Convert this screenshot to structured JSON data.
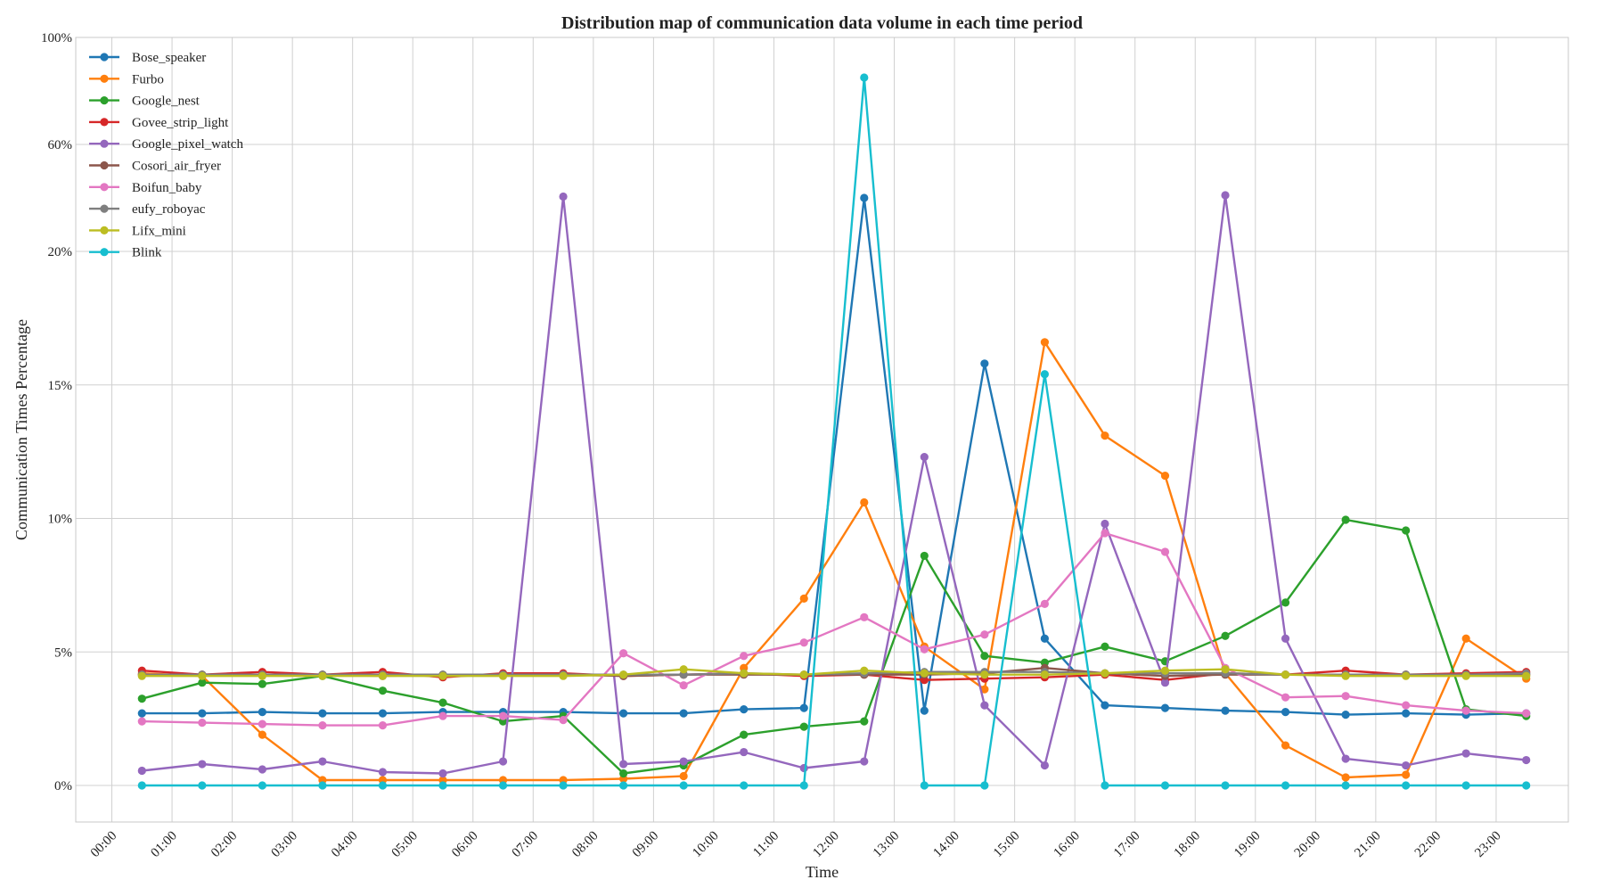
{
  "chart_data": {
    "type": "line",
    "title": "Distribution map of communication data volume in each time period",
    "xlabel": "Time",
    "ylabel": "Communication Times Percentage",
    "x_tick_labels": [
      "00:00",
      "01:00",
      "02:00",
      "03:00",
      "04:00",
      "05:00",
      "06:00",
      "07:00",
      "08:00",
      "09:00",
      "10:00",
      "11:00",
      "12:00",
      "13:00",
      "14:00",
      "15:00",
      "16:00",
      "17:00",
      "18:00",
      "19:00",
      "20:00",
      "21:00",
      "22:00",
      "23:00"
    ],
    "x": [
      0.5,
      1.5,
      2.5,
      3.5,
      4.5,
      5.5,
      6.5,
      7.5,
      8.5,
      9.5,
      10.5,
      11.5,
      12.5,
      13.5,
      14.5,
      15.5,
      16.5,
      17.5,
      18.5,
      19.5,
      20.5,
      21.5,
      22.5,
      23.5
    ],
    "xlim": [
      -0.6,
      24.2
    ],
    "y_scale": "piecewise: 0-20% linear, 20-100% compressed",
    "y_ticks": [
      0,
      5,
      10,
      15,
      20,
      60,
      100
    ],
    "y_tick_labels": [
      "0%",
      "5%",
      "10%",
      "15%",
      "20%",
      "60%",
      "100%"
    ],
    "ylim": [
      -1.3,
      100
    ],
    "grid": true,
    "legend_position": "top-left",
    "series": [
      {
        "name": "Bose_speaker",
        "color": "#1f77b4",
        "values": [
          2.7,
          2.7,
          2.75,
          2.7,
          2.7,
          2.75,
          2.75,
          2.75,
          2.7,
          2.7,
          2.85,
          2.9,
          40,
          2.8,
          15.8,
          5.5,
          3.0,
          2.9,
          2.8,
          2.75,
          2.65,
          2.7,
          2.65,
          2.7
        ]
      },
      {
        "name": "Furbo",
        "color": "#ff7f0e",
        "values": [
          4.2,
          4.1,
          1.9,
          0.2,
          0.2,
          0.2,
          0.2,
          0.2,
          0.25,
          0.35,
          4.4,
          7.0,
          10.6,
          5.2,
          3.6,
          16.6,
          13.1,
          11.6,
          4.2,
          1.5,
          0.3,
          0.4,
          5.5,
          4.0
        ]
      },
      {
        "name": "Google_nest",
        "color": "#2ca02c",
        "values": [
          3.25,
          3.85,
          3.8,
          4.1,
          3.55,
          3.1,
          2.4,
          2.6,
          0.45,
          0.75,
          1.9,
          2.2,
          2.4,
          8.6,
          4.85,
          4.6,
          5.2,
          4.65,
          5.6,
          6.85,
          9.95,
          9.55,
          2.85,
          2.6
        ]
      },
      {
        "name": "Govee_strip_light",
        "color": "#d62728",
        "values": [
          4.3,
          4.15,
          4.25,
          4.15,
          4.25,
          4.05,
          4.2,
          4.2,
          4.1,
          4.15,
          4.2,
          4.1,
          4.15,
          3.95,
          4.0,
          4.05,
          4.15,
          3.95,
          4.2,
          4.15,
          4.3,
          4.15,
          4.2,
          4.25
        ]
      },
      {
        "name": "Google_pixel_watch",
        "color": "#9467bd",
        "values": [
          0.55,
          0.8,
          0.6,
          0.9,
          0.5,
          0.45,
          0.9,
          40.5,
          0.8,
          0.9,
          1.25,
          0.65,
          0.9,
          12.3,
          3.0,
          0.75,
          9.8,
          3.85,
          41,
          5.5,
          1.0,
          0.75,
          1.2,
          0.95
        ]
      },
      {
        "name": "Cosori_air_fryer",
        "color": "#8c564b",
        "values": [
          4.15,
          4.15,
          4.15,
          4.15,
          4.1,
          4.15,
          4.15,
          4.15,
          4.1,
          4.15,
          4.15,
          4.15,
          4.15,
          4.15,
          4.2,
          4.4,
          4.2,
          4.1,
          4.15,
          4.15,
          4.15,
          4.15,
          4.15,
          4.15
        ]
      },
      {
        "name": "Boifun_baby",
        "color": "#e377c2",
        "values": [
          2.4,
          2.35,
          2.3,
          2.25,
          2.25,
          2.6,
          2.6,
          2.45,
          4.95,
          3.75,
          4.85,
          5.35,
          6.3,
          5.1,
          5.65,
          6.8,
          9.45,
          8.75,
          4.4,
          3.3,
          3.35,
          3.0,
          2.8,
          2.7
        ]
      },
      {
        "name": "eufy_roboyac",
        "color": "#7f7f7f",
        "values": [
          4.15,
          4.15,
          4.15,
          4.15,
          4.15,
          4.15,
          4.15,
          4.15,
          4.15,
          4.15,
          4.2,
          4.15,
          4.2,
          4.25,
          4.25,
          4.25,
          4.2,
          4.2,
          4.2,
          4.15,
          4.15,
          4.15,
          4.15,
          4.2
        ]
      },
      {
        "name": "Lifx_mini",
        "color": "#bcbd22",
        "values": [
          4.1,
          4.1,
          4.1,
          4.1,
          4.1,
          4.1,
          4.1,
          4.1,
          4.15,
          4.35,
          4.2,
          4.15,
          4.3,
          4.2,
          4.15,
          4.15,
          4.2,
          4.3,
          4.35,
          4.15,
          4.1,
          4.1,
          4.1,
          4.1
        ]
      },
      {
        "name": "Blink",
        "color": "#17becf",
        "values": [
          0,
          0,
          0,
          0,
          0,
          0,
          0,
          0,
          0,
          0,
          0,
          0,
          85,
          0,
          0,
          15.4,
          0,
          0,
          0,
          0,
          0,
          0,
          0,
          0
        ]
      }
    ]
  }
}
